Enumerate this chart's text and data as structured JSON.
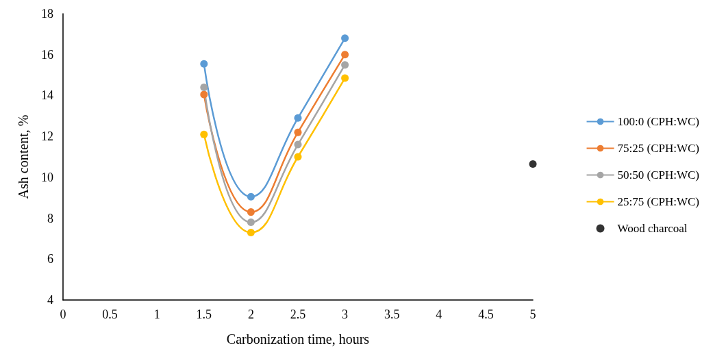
{
  "chart_data": {
    "type": "line",
    "xlabel": "Carbonization time, hours",
    "ylabel": "Ash content, %",
    "xlim": [
      0,
      5
    ],
    "xticks": [
      0,
      0.5,
      1,
      1.5,
      2,
      2.5,
      3,
      3.5,
      4,
      4.5,
      5
    ],
    "ylim": [
      4,
      18
    ],
    "yticks": [
      4,
      6,
      8,
      10,
      12,
      14,
      16,
      18
    ],
    "marker": "circle",
    "line_style": "solid",
    "grid": false,
    "legend": "right",
    "series": [
      {
        "name": "100:0 (CPH:WC)",
        "color": "#5b9bd5",
        "x": [
          1.5,
          2,
          2.5,
          3
        ],
        "values": [
          15.55,
          9.05,
          12.9,
          16.8
        ]
      },
      {
        "name": "75:25 (CPH:WC)",
        "color": "#ed7d31",
        "x": [
          1.5,
          2,
          2.5,
          3
        ],
        "values": [
          14.05,
          8.3,
          12.2,
          16.0
        ]
      },
      {
        "name": "50:50 (CPH:WC)",
        "color": "#a5a5a5",
        "x": [
          1.5,
          2,
          2.5,
          3
        ],
        "values": [
          14.4,
          7.8,
          11.6,
          15.5
        ]
      },
      {
        "name": "25:75 (CPH:WC)",
        "color": "#ffc000",
        "x": [
          1.5,
          2,
          2.5,
          3
        ],
        "values": [
          12.1,
          7.3,
          11.0,
          14.85
        ]
      },
      {
        "name": "Wood charcoal",
        "color": "#000000",
        "type": "scatter",
        "x": [
          5
        ],
        "values": [
          10.65
        ]
      }
    ]
  }
}
